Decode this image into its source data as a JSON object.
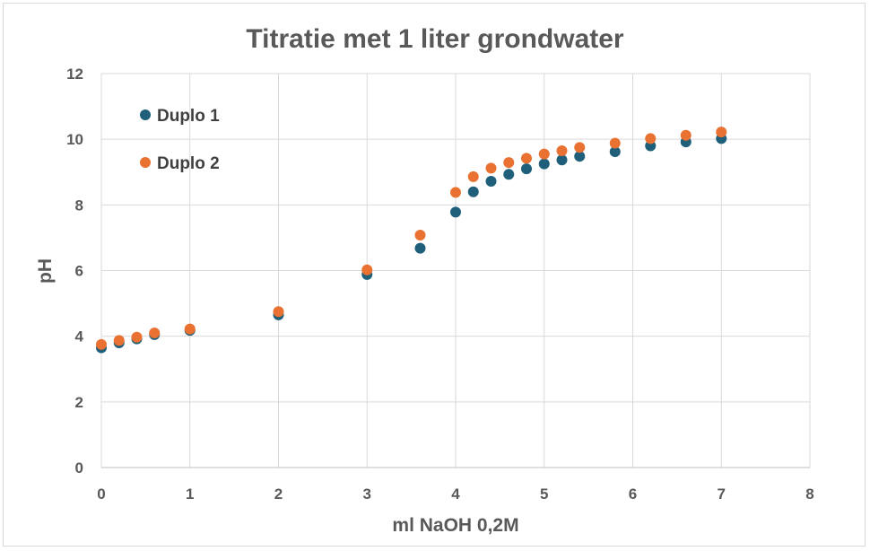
{
  "chart_data": {
    "type": "scatter",
    "title": "Titratie met 1 liter grondwater",
    "xlabel": "ml NaOH 0,2M",
    "ylabel": "pH",
    "xlim": [
      0,
      8
    ],
    "ylim": [
      0,
      12
    ],
    "x_ticks": [
      "0",
      "1",
      "2",
      "3",
      "4",
      "5",
      "6",
      "7",
      "8"
    ],
    "y_ticks": [
      "0",
      "2",
      "4",
      "6",
      "8",
      "10",
      "12"
    ],
    "grid": "vertical and horizontal major gridlines",
    "legend_position": "top-left inside plot",
    "series": [
      {
        "name": "Duplo 1",
        "color": "#1f5f7a",
        "x": [
          0,
          0.2,
          0.4,
          0.6,
          1,
          2,
          3,
          3.6,
          4,
          4.2,
          4.4,
          4.6,
          4.8,
          5,
          5.2,
          5.4,
          5.8,
          6.2,
          6.6,
          7
        ],
        "y": [
          3.65,
          3.8,
          3.92,
          4.05,
          4.18,
          4.65,
          5.88,
          6.68,
          7.78,
          8.4,
          8.72,
          8.93,
          9.1,
          9.25,
          9.37,
          9.48,
          9.62,
          9.8,
          9.92,
          10.02
        ]
      },
      {
        "name": "Duplo 2",
        "color": "#e97132",
        "x": [
          0,
          0.2,
          0.4,
          0.6,
          1,
          2,
          3,
          3.6,
          4,
          4.2,
          4.4,
          4.6,
          4.8,
          5,
          5.2,
          5.4,
          5.8,
          6.2,
          6.6,
          7
        ],
        "y": [
          3.75,
          3.87,
          3.97,
          4.1,
          4.22,
          4.75,
          6.02,
          7.08,
          8.38,
          8.86,
          9.12,
          9.29,
          9.42,
          9.55,
          9.65,
          9.75,
          9.88,
          10.02,
          10.12,
          10.22
        ]
      }
    ]
  }
}
